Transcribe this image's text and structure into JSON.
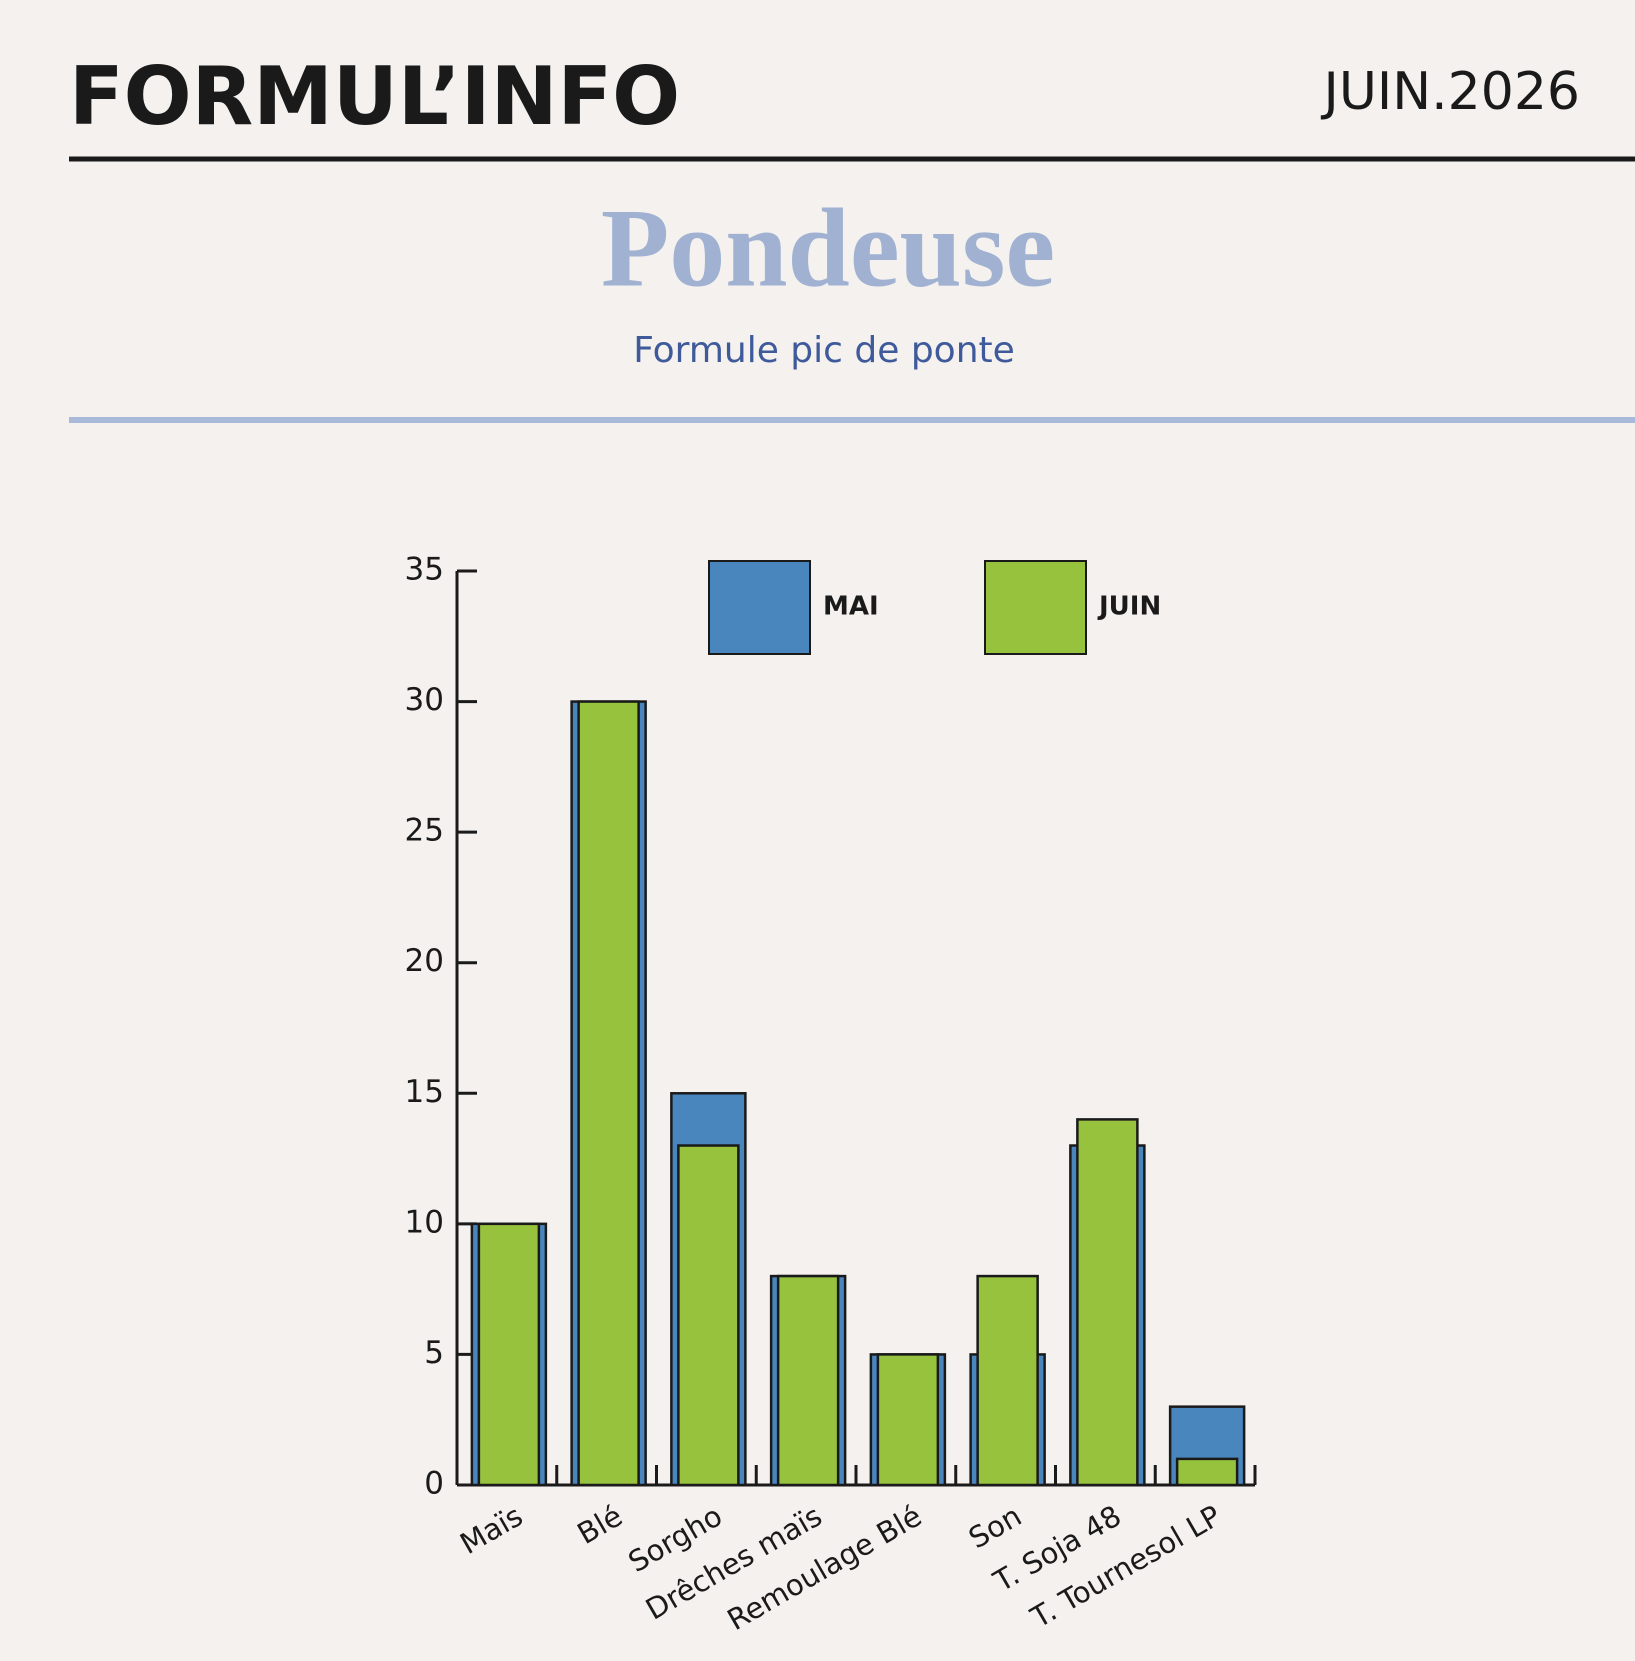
{
  "header": {
    "brand": "FORMUL’INFO",
    "date": "JUIN.2026"
  },
  "chart_data": {
    "type": "bar",
    "title": "Pondeuse",
    "subtitle": "Formule pic de ponte",
    "categories": [
      "Maïs",
      "Blé",
      "Sorgho",
      "Drêches maïs",
      "Remoulage Blé",
      "Son",
      "T. Soja 48",
      "T. Tournesol LP"
    ],
    "series": [
      {
        "name": "MAI",
        "color": "#4a86be",
        "values": [
          10,
          30,
          15,
          8,
          5,
          5,
          13,
          3
        ]
      },
      {
        "name": "JUIN",
        "color": "#97c23e",
        "values": [
          10,
          30,
          13,
          8,
          5,
          8,
          14,
          1
        ]
      }
    ],
    "ylim": [
      0,
      35
    ],
    "yticks": [
      0,
      5,
      10,
      15,
      20,
      25,
      30,
      35
    ],
    "grid": false
  }
}
